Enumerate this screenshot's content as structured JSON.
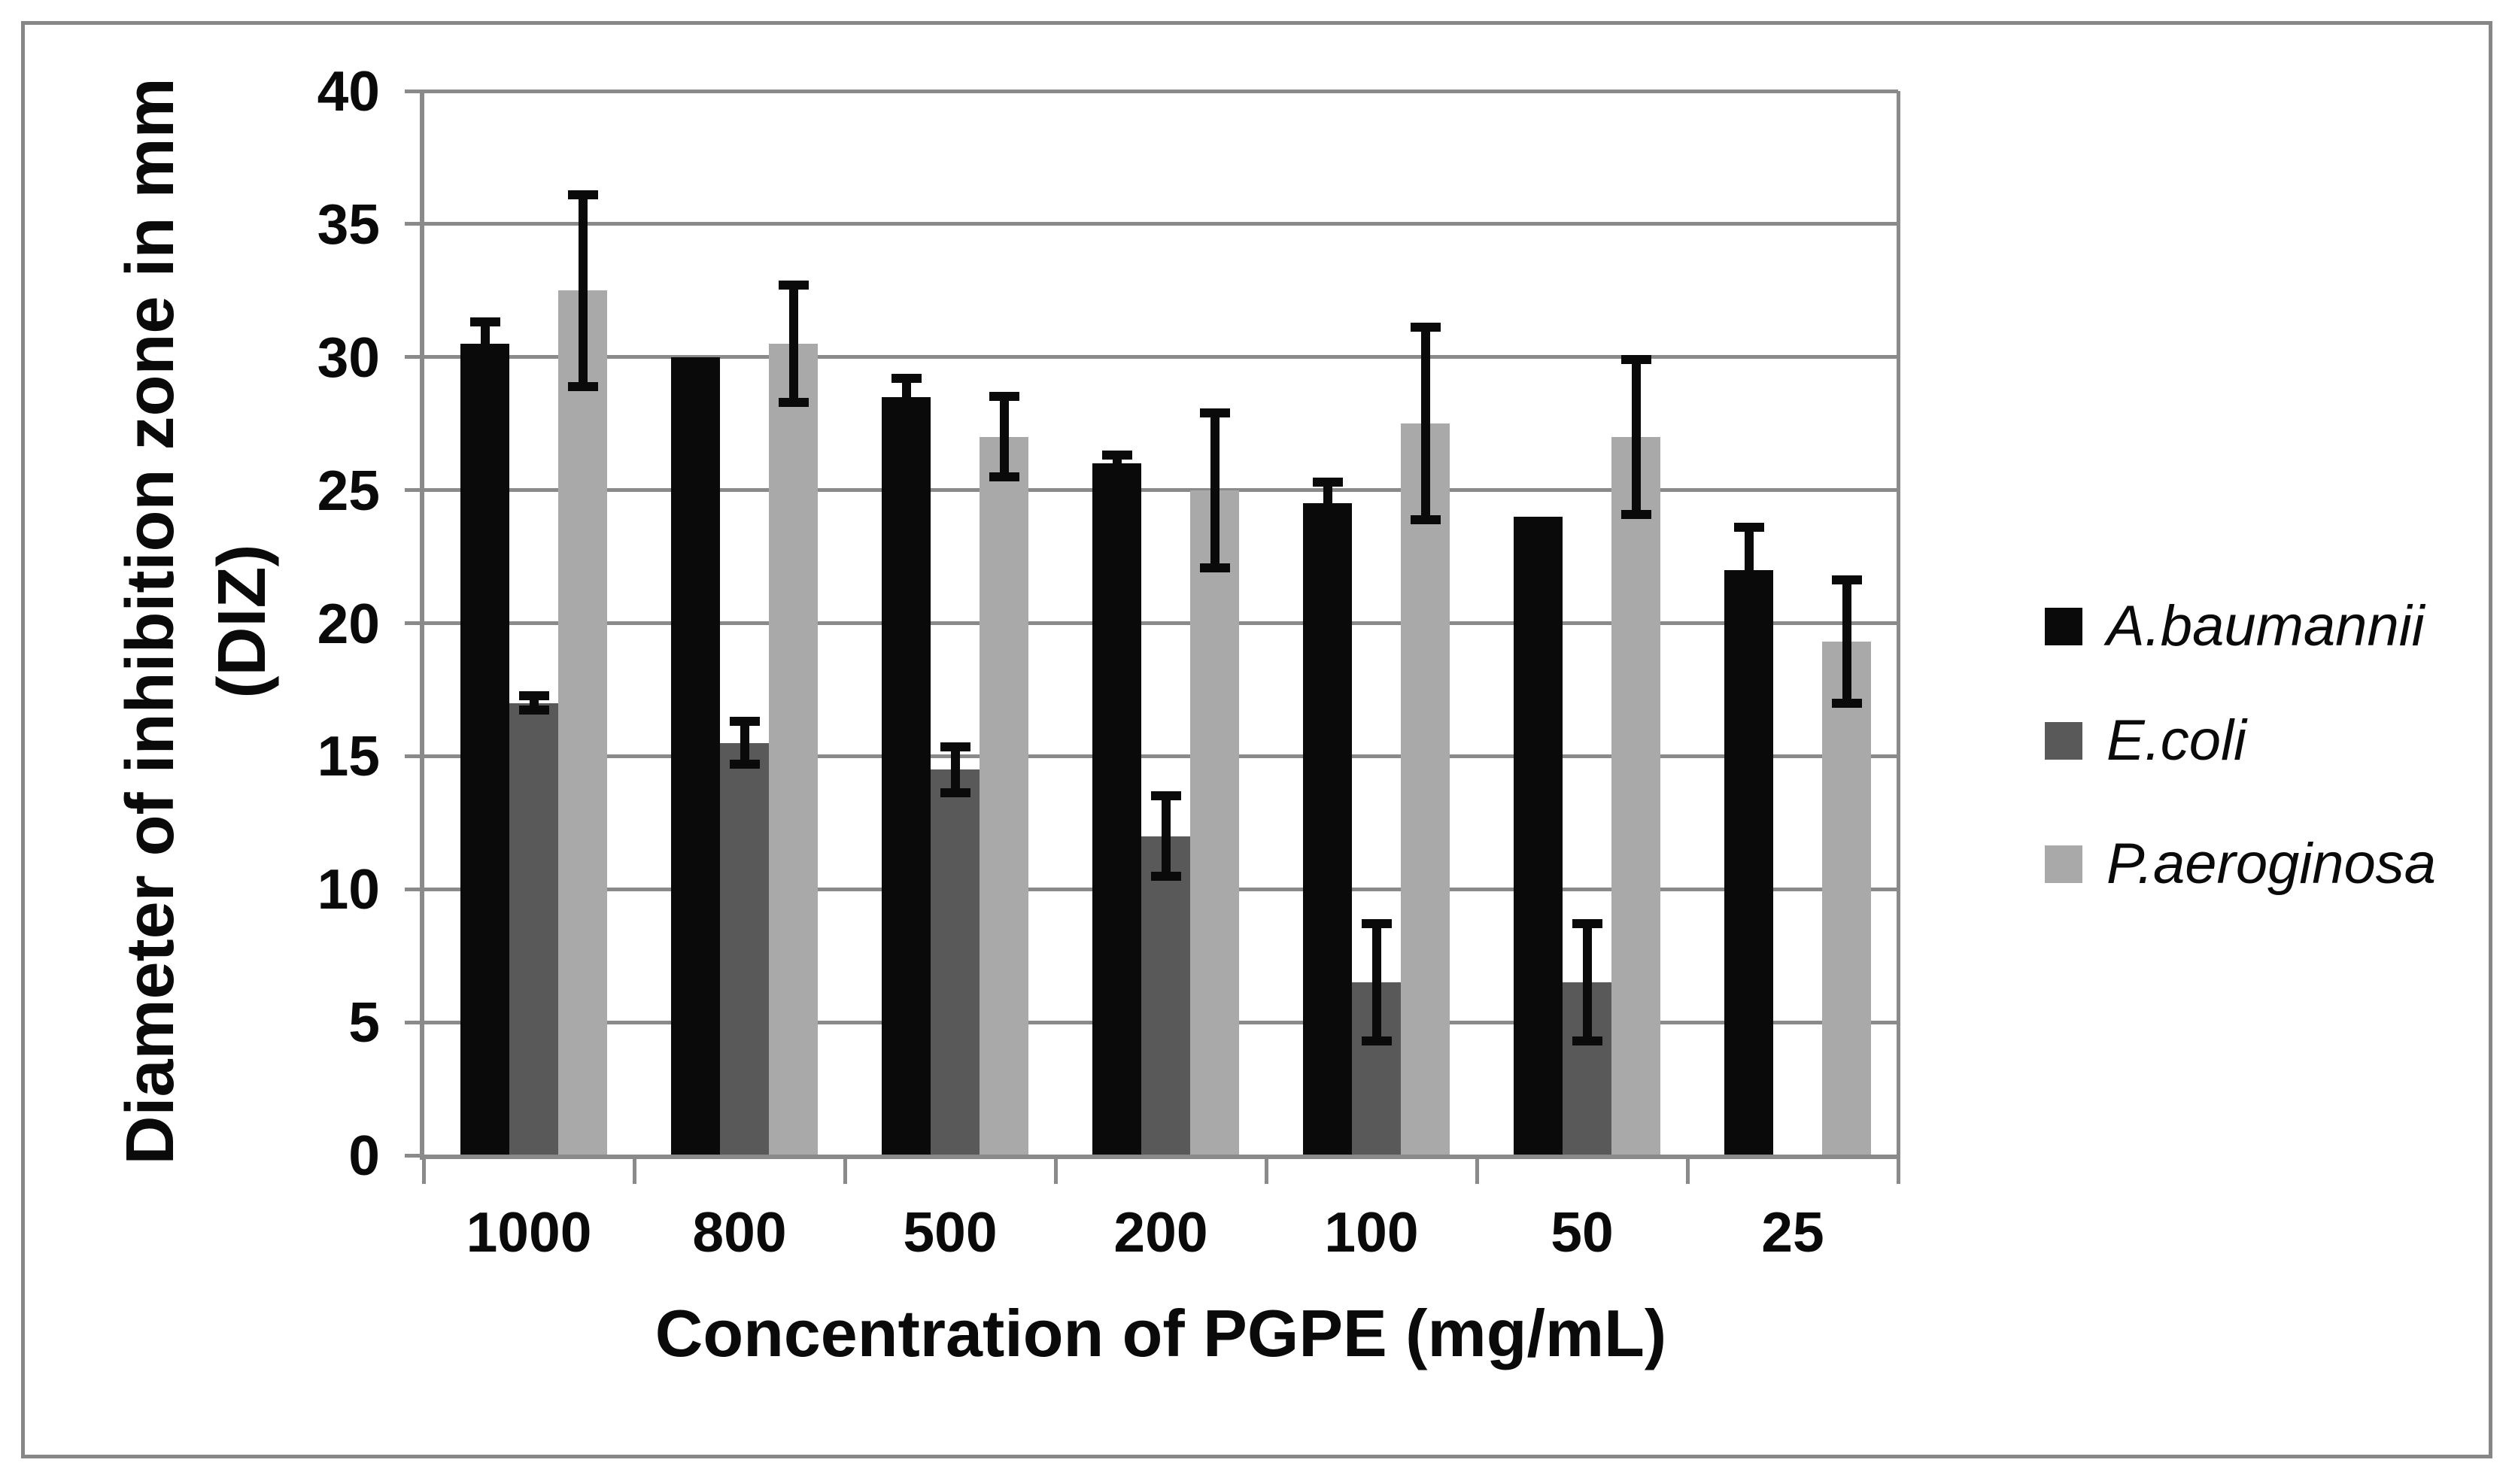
{
  "figure": {
    "border_color": "#878787",
    "background_color": "#ffffff",
    "grid_color": "#8a8a8a",
    "text_color": "#0a0a0a"
  },
  "chart_data": {
    "type": "bar",
    "title": "",
    "xlabel": "Concentration of PGPE (mg/mL)",
    "ylabel_line1": "Diameter of inhibition zone in mm",
    "ylabel_line2": "(DIZ)",
    "categories": [
      "1000",
      "800",
      "500",
      "200",
      "100",
      "50",
      "25"
    ],
    "y_ticks": [
      0,
      5,
      10,
      15,
      20,
      25,
      30,
      35,
      40
    ],
    "ylim": [
      0,
      40
    ],
    "grid": true,
    "legend_position": "right",
    "error_bars": true,
    "series": [
      {
        "name": "A.baumannii",
        "color": "#0a0a0a",
        "values": [
          30.5,
          30,
          28.5,
          26,
          24.5,
          24,
          22
        ],
        "errors": [
          0.7,
          0,
          0.6,
          0.2,
          0.7,
          0,
          1.5
        ]
      },
      {
        "name": "E.coli",
        "color": "#595959",
        "values": [
          17,
          15.5,
          14.5,
          12,
          6.5,
          6.5,
          null
        ],
        "errors": [
          0.15,
          0.7,
          0.75,
          1.4,
          2.1,
          2.1,
          null
        ]
      },
      {
        "name": "P.aeroginosa",
        "color": "#a9a9a9",
        "values": [
          32.5,
          30.5,
          27,
          25,
          27.5,
          27,
          19.3
        ],
        "errors": [
          3.5,
          2.1,
          1.4,
          2.8,
          3.5,
          2.8,
          2.2
        ]
      }
    ]
  }
}
